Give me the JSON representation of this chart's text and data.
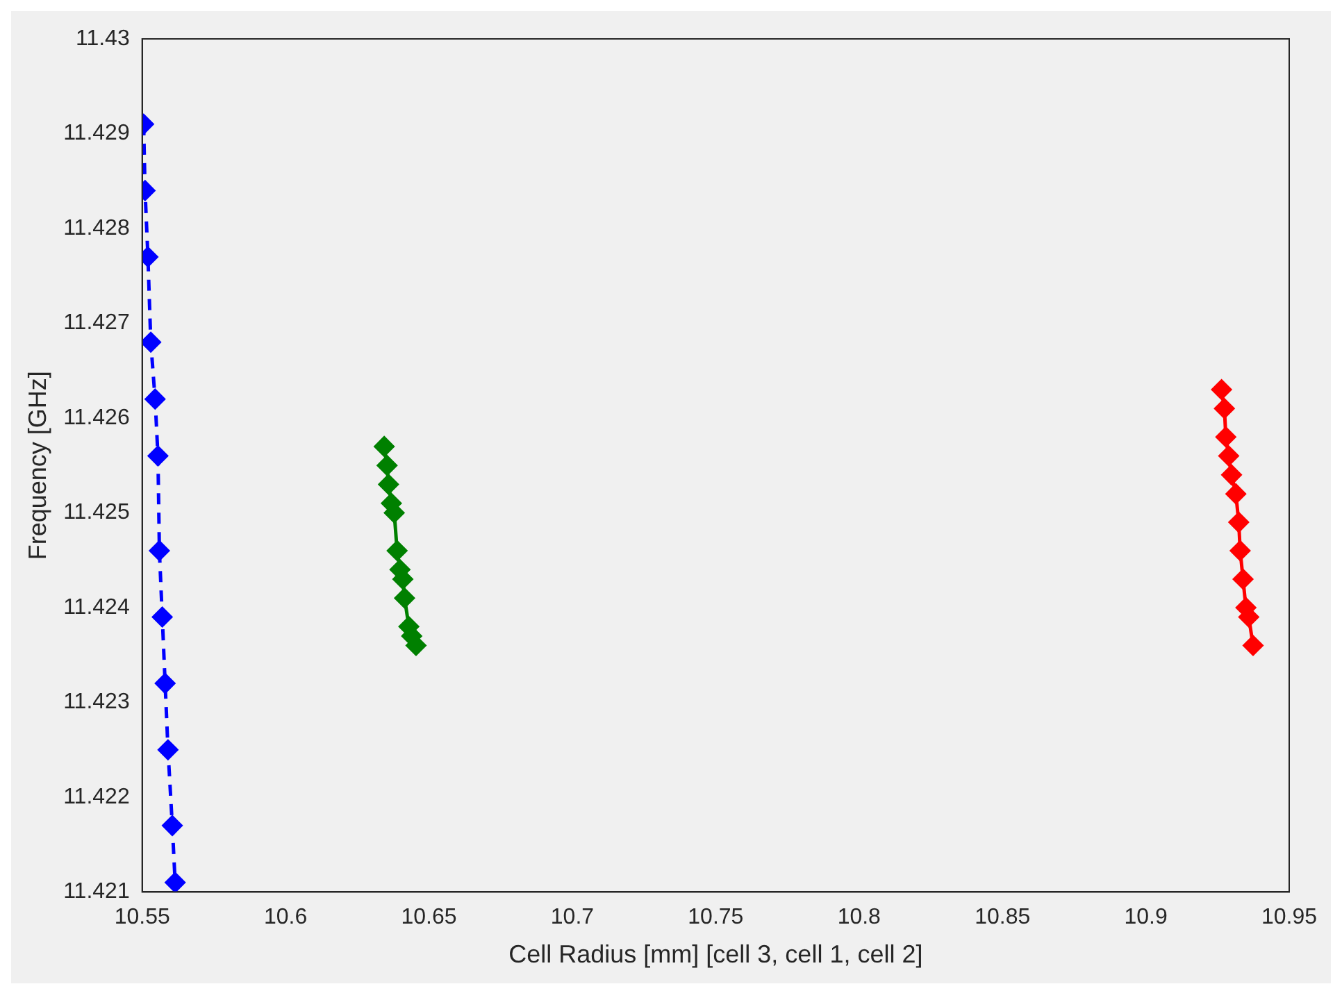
{
  "chart_data": {
    "type": "line",
    "xlabel": "Cell Radius [mm] [cell 3, cell 1, cell 2]",
    "ylabel": "Frequency [GHz]",
    "xlim": [
      10.55,
      10.95
    ],
    "xticks": [
      10.55,
      10.6,
      10.65,
      10.7,
      10.75,
      10.8,
      10.85,
      10.9,
      10.95
    ],
    "ylim": [
      11.421,
      11.43
    ],
    "yticks": [
      11.421,
      11.422,
      11.423,
      11.424,
      11.425,
      11.426,
      11.427,
      11.428,
      11.429,
      11.43
    ],
    "grid": false,
    "legend": false,
    "marker": "diamond",
    "series": [
      {
        "color": "#0000ff",
        "line_style": "dashed",
        "x": [
          10.5505,
          10.551,
          10.552,
          10.553,
          10.5545,
          10.5555,
          10.556,
          10.557,
          10.558,
          10.559,
          10.5605,
          10.5615
        ],
        "values": [
          11.4291,
          11.4284,
          11.4277,
          11.4268,
          11.4262,
          11.4256,
          11.4246,
          11.4239,
          11.4232,
          11.4225,
          11.4217,
          11.4211
        ]
      },
      {
        "color": "#008000",
        "line_style": "solid",
        "x": [
          10.6344,
          10.6354,
          10.6359,
          10.6369,
          10.6379,
          10.6389,
          10.6399,
          10.6409,
          10.6415,
          10.643,
          10.644,
          10.6455
        ],
        "values": [
          11.4257,
          11.4255,
          11.4253,
          11.4251,
          11.425,
          11.4246,
          11.4244,
          11.4243,
          11.4241,
          11.4238,
          11.4237,
          11.4236
        ]
      },
      {
        "color": "#ff0000",
        "line_style": "solid",
        "x": [
          10.9264,
          10.9274,
          10.9279,
          10.9289,
          10.9299,
          10.9314,
          10.9324,
          10.9329,
          10.9339,
          10.9349,
          10.9359,
          10.9374
        ],
        "values": [
          11.4263,
          11.4261,
          11.4258,
          11.4256,
          11.4254,
          11.4252,
          11.4249,
          11.4246,
          11.4243,
          11.424,
          11.4239,
          11.4236
        ]
      }
    ]
  }
}
